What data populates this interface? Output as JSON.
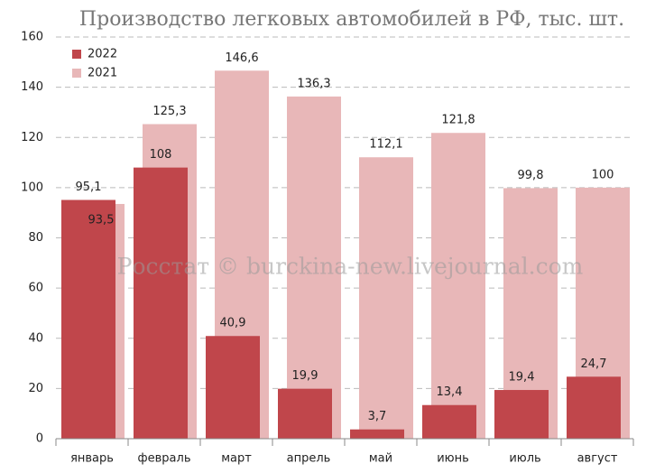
{
  "chart_data": {
    "type": "bar",
    "title": "Производство легковых автомобилей в РФ, тыс. шт.",
    "watermark": "Росстат © burckina-new.livejournal.com",
    "categories": [
      "январь",
      "февраль",
      "март",
      "апрель",
      "май",
      "июнь",
      "июль",
      "август"
    ],
    "series": [
      {
        "name": "2022",
        "color": "#c0464b",
        "values": [
          95.1,
          108,
          40.9,
          19.9,
          3.7,
          13.4,
          19.4,
          24.7
        ],
        "value_labels": [
          "95,1",
          "108",
          "40,9",
          "19,9",
          "3,7",
          "13,4",
          "19,4",
          "24,7"
        ]
      },
      {
        "name": "2021",
        "color": "#e8b7b8",
        "values": [
          93.5,
          125.3,
          146.6,
          136.3,
          112.1,
          121.8,
          99.8,
          100
        ],
        "value_labels": [
          "93,5",
          "125,3",
          "146,6",
          "136,3",
          "112,1",
          "121,8",
          "99,8",
          "100"
        ]
      }
    ],
    "ylim": [
      0,
      160
    ],
    "yticks": [
      0,
      20,
      40,
      60,
      80,
      100,
      120,
      140,
      160
    ],
    "grid": true,
    "legend": "top-left"
  }
}
